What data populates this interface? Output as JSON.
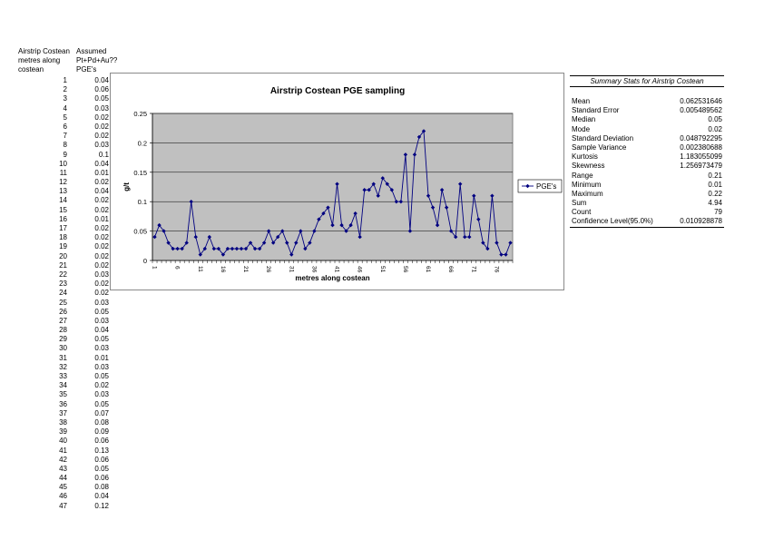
{
  "sheet": {
    "col_a_header": "Airstrip Costean metres along costean",
    "col_b_header": "Assumed Pt+Pd+Au?? PGE's"
  },
  "chart_data": {
    "type": "line",
    "title": "Airstrip Costean PGE sampling",
    "xlabel": "metres along costean",
    "ylabel": "g/t",
    "ylim": [
      0,
      0.25
    ],
    "yticks": [
      "0",
      "0.05",
      "0.1",
      "0.15",
      "0.2",
      "0.25"
    ],
    "xticks": [
      "1",
      "6",
      "11",
      "16",
      "21",
      "26",
      "31",
      "36",
      "41",
      "46",
      "51",
      "56",
      "61",
      "66",
      "71",
      "76"
    ],
    "grid": true,
    "legend_position": "right",
    "series": [
      {
        "name": "PGE's",
        "color": "#000080",
        "x": [
          1,
          2,
          3,
          4,
          5,
          6,
          7,
          8,
          9,
          10,
          11,
          12,
          13,
          14,
          15,
          16,
          17,
          18,
          19,
          20,
          21,
          22,
          23,
          24,
          25,
          26,
          27,
          28,
          29,
          30,
          31,
          32,
          33,
          34,
          35,
          36,
          37,
          38,
          39,
          40,
          41,
          42,
          43,
          44,
          45,
          46,
          47,
          48,
          49,
          50,
          51,
          52,
          53,
          54,
          55,
          56,
          57,
          58,
          59,
          60,
          61,
          62,
          63,
          64,
          65,
          66,
          67,
          68,
          69,
          70,
          71,
          72,
          73,
          74,
          75,
          76,
          77,
          78,
          79
        ],
        "values": [
          0.04,
          0.06,
          0.05,
          0.03,
          0.02,
          0.02,
          0.02,
          0.03,
          0.1,
          0.04,
          0.01,
          0.02,
          0.04,
          0.02,
          0.02,
          0.01,
          0.02,
          0.02,
          0.02,
          0.02,
          0.02,
          0.03,
          0.02,
          0.02,
          0.03,
          0.05,
          0.03,
          0.04,
          0.05,
          0.03,
          0.01,
          0.03,
          0.05,
          0.02,
          0.03,
          0.05,
          0.07,
          0.08,
          0.09,
          0.06,
          0.13,
          0.06,
          0.05,
          0.06,
          0.08,
          0.04,
          0.12,
          0.12,
          0.13,
          0.11,
          0.14,
          0.13,
          0.12,
          0.1,
          0.1,
          0.18,
          0.05,
          0.18,
          0.21,
          0.22,
          0.11,
          0.09,
          0.06,
          0.12,
          0.09,
          0.05,
          0.04,
          0.13,
          0.04,
          0.04,
          0.11,
          0.07,
          0.03,
          0.02,
          0.11,
          0.03,
          0.01,
          0.01,
          0.03
        ]
      }
    ]
  },
  "stats": {
    "title": "Summary Stats for Airstrip Costean",
    "rows": [
      {
        "label": "Mean",
        "value": "0.062531646"
      },
      {
        "label": "Standard Error",
        "value": "0.005489562"
      },
      {
        "label": "Median",
        "value": "0.05"
      },
      {
        "label": "Mode",
        "value": "0.02"
      },
      {
        "label": "Standard Deviation",
        "value": "0.048792295"
      },
      {
        "label": "Sample Variance",
        "value": "0.002380688"
      },
      {
        "label": "Kurtosis",
        "value": "1.183055099"
      },
      {
        "label": "Skewness",
        "value": "1.256973479"
      },
      {
        "label": "Range",
        "value": "0.21"
      },
      {
        "label": "Minimum",
        "value": "0.01"
      },
      {
        "label": "Maximum",
        "value": "0.22"
      },
      {
        "label": "Sum",
        "value": "4.94"
      },
      {
        "label": "Count",
        "value": "79"
      },
      {
        "label": "Confidence Level(95.0%)",
        "value": "0.010928878"
      }
    ]
  },
  "table_rows": [
    {
      "m": "1",
      "v": "0.04"
    },
    {
      "m": "2",
      "v": "0.06"
    },
    {
      "m": "3",
      "v": "0.05"
    },
    {
      "m": "4",
      "v": "0.03"
    },
    {
      "m": "5",
      "v": "0.02"
    },
    {
      "m": "6",
      "v": "0.02"
    },
    {
      "m": "7",
      "v": "0.02"
    },
    {
      "m": "8",
      "v": "0.03"
    },
    {
      "m": "9",
      "v": "0.1"
    },
    {
      "m": "10",
      "v": "0.04"
    },
    {
      "m": "11",
      "v": "0.01"
    },
    {
      "m": "12",
      "v": "0.02"
    },
    {
      "m": "13",
      "v": "0.04"
    },
    {
      "m": "14",
      "v": "0.02"
    },
    {
      "m": "15",
      "v": "0.02"
    },
    {
      "m": "16",
      "v": "0.01"
    },
    {
      "m": "17",
      "v": "0.02"
    },
    {
      "m": "18",
      "v": "0.02"
    },
    {
      "m": "19",
      "v": "0.02"
    },
    {
      "m": "20",
      "v": "0.02"
    },
    {
      "m": "21",
      "v": "0.02"
    },
    {
      "m": "22",
      "v": "0.03"
    },
    {
      "m": "23",
      "v": "0.02"
    },
    {
      "m": "24",
      "v": "0.02"
    },
    {
      "m": "25",
      "v": "0.03"
    },
    {
      "m": "26",
      "v": "0.05"
    },
    {
      "m": "27",
      "v": "0.03"
    },
    {
      "m": "28",
      "v": "0.04"
    },
    {
      "m": "29",
      "v": "0.05"
    },
    {
      "m": "30",
      "v": "0.03"
    },
    {
      "m": "31",
      "v": "0.01"
    },
    {
      "m": "32",
      "v": "0.03"
    },
    {
      "m": "33",
      "v": "0.05"
    },
    {
      "m": "34",
      "v": "0.02"
    },
    {
      "m": "35",
      "v": "0.03"
    },
    {
      "m": "36",
      "v": "0.05"
    },
    {
      "m": "37",
      "v": "0.07"
    },
    {
      "m": "38",
      "v": "0.08"
    },
    {
      "m": "39",
      "v": "0.09"
    },
    {
      "m": "40",
      "v": "0.06"
    },
    {
      "m": "41",
      "v": "0.13"
    },
    {
      "m": "42",
      "v": "0.06"
    },
    {
      "m": "43",
      "v": "0.05"
    },
    {
      "m": "44",
      "v": "0.06"
    },
    {
      "m": "45",
      "v": "0.08"
    },
    {
      "m": "46",
      "v": "0.04"
    },
    {
      "m": "47",
      "v": "0.12"
    }
  ]
}
